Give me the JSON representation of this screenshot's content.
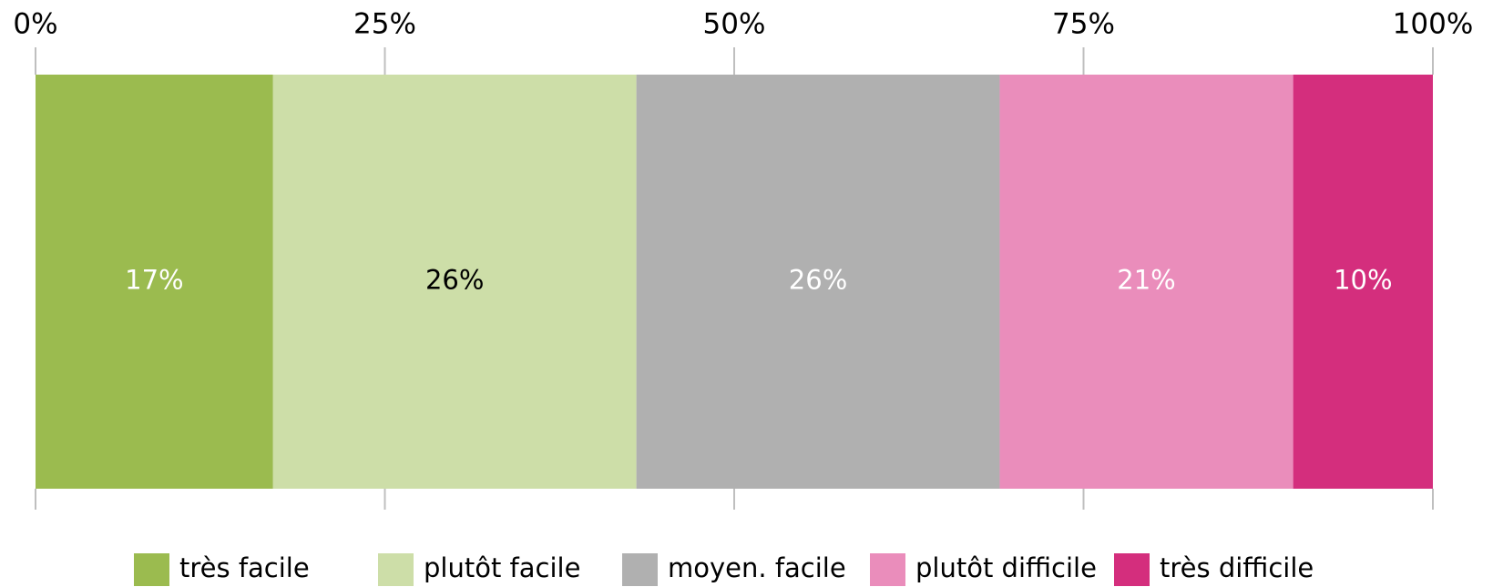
{
  "chart_data": {
    "type": "stacked_barh",
    "categories": [
      null
    ],
    "series": [
      {
        "name": "très facile",
        "color": "#9bbb4f",
        "label_color": "#ffffff",
        "values": [
          17
        ],
        "value_labels": [
          "17%"
        ]
      },
      {
        "name": "plutôt facile",
        "color": "#cddea8",
        "label_color": "#000000",
        "values": [
          26
        ],
        "value_labels": [
          "26%"
        ]
      },
      {
        "name": "moyen. facile",
        "color": "#b0b0b0",
        "label_color": "#ffffff",
        "values": [
          26
        ],
        "value_labels": [
          "26%"
        ]
      },
      {
        "name": "plutôt difficile",
        "color": "#ea8dbb",
        "label_color": "#ffffff",
        "values": [
          21
        ],
        "value_labels": [
          "21%"
        ]
      },
      {
        "name": "très difficile",
        "color": "#d42e7d",
        "label_color": "#ffffff",
        "values": [
          10
        ],
        "value_labels": [
          "10%"
        ]
      }
    ],
    "xlim": [
      0,
      100
    ],
    "xticks": [
      {
        "value": 0,
        "label": "0%"
      },
      {
        "value": 25,
        "label": "25%"
      },
      {
        "value": 50,
        "label": "50%"
      },
      {
        "value": 75,
        "label": "75%"
      },
      {
        "value": 100,
        "label": "100%"
      }
    ],
    "grid": false,
    "legend": "bottom"
  }
}
